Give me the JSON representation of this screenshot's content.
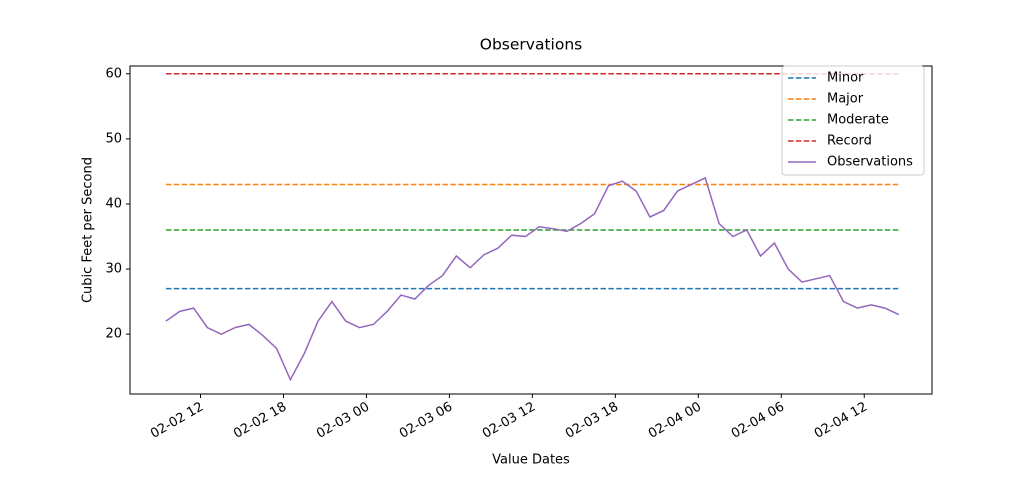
{
  "chart_data": {
    "type": "line",
    "title": "Observations",
    "xlabel": "Value Dates",
    "ylabel": "Cubic Feet per Second",
    "xlim": [
      6.9,
      64.9
    ],
    "ylim": [
      10.8,
      61.2
    ],
    "xticks": [
      {
        "value": 12,
        "label": "02-02 12"
      },
      {
        "value": 18,
        "label": "02-02 18"
      },
      {
        "value": 24,
        "label": "02-03 00"
      },
      {
        "value": 30,
        "label": "02-03 06"
      },
      {
        "value": 36,
        "label": "02-03 12"
      },
      {
        "value": 42,
        "label": "02-03 18"
      },
      {
        "value": 48,
        "label": "02-04 00"
      },
      {
        "value": 54,
        "label": "02-04 06"
      },
      {
        "value": 60,
        "label": "02-04 12"
      }
    ],
    "yticks": [
      20,
      30,
      40,
      50,
      60
    ],
    "grid": false,
    "legend": "upper right",
    "series": [
      {
        "name": "Minor",
        "color": "#1f77b4",
        "linestyle": "dashed",
        "x": [
          9.5,
          62.5
        ],
        "values": [
          27,
          27
        ]
      },
      {
        "name": "Major",
        "color": "#ff7f0e",
        "linestyle": "dashed",
        "x": [
          9.5,
          62.5
        ],
        "values": [
          43,
          43
        ]
      },
      {
        "name": "Moderate",
        "color": "#2ca02c",
        "linestyle": "dashed",
        "x": [
          9.5,
          62.5
        ],
        "values": [
          36,
          36
        ]
      },
      {
        "name": "Record",
        "color": "#d62728",
        "linestyle": "dashed",
        "x": [
          9.5,
          62.5
        ],
        "values": [
          60,
          60
        ]
      },
      {
        "name": "Observations",
        "color": "#9467bd",
        "linestyle": "solid",
        "x": [
          9.5,
          10.5,
          11.5,
          12.5,
          13.5,
          14.5,
          15.5,
          16.5,
          17.5,
          18.5,
          19.5,
          20.5,
          21.5,
          22.5,
          23.5,
          24.5,
          25.5,
          26.5,
          27.5,
          28.5,
          29.5,
          30.5,
          31.5,
          32.5,
          33.5,
          34.5,
          35.5,
          36.5,
          37.5,
          38.5,
          39.5,
          40.5,
          41.5,
          42.5,
          43.5,
          44.5,
          45.5,
          46.5,
          47.5,
          48.5,
          49.5,
          50.5,
          51.5,
          52.5,
          53.5,
          54.5,
          55.5,
          56.5,
          57.5,
          58.5,
          59.5,
          60.5,
          61.5,
          62.5
        ],
        "values": [
          22,
          23.5,
          24,
          21,
          20,
          21,
          21.5,
          19.8,
          17.8,
          13,
          17,
          22,
          25,
          22,
          21,
          21.5,
          23.5,
          26,
          25.4,
          27.5,
          29,
          32,
          30.2,
          32.2,
          33.2,
          35.2,
          35,
          36.5,
          36.2,
          35.8,
          37,
          38.5,
          42.8,
          43.5,
          42,
          38,
          39,
          42,
          43,
          44,
          37,
          35,
          36,
          32,
          34,
          30,
          28,
          28.5,
          29,
          25,
          24,
          24.5,
          24,
          23
        ]
      }
    ]
  }
}
